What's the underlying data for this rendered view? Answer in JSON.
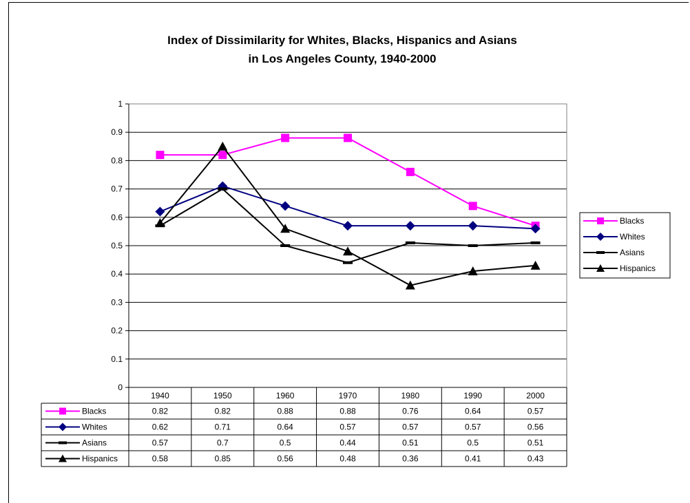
{
  "chart_data": {
    "type": "line",
    "title": "Index of Dissimilarity for Whites, Blacks, Hispanics and Asians",
    "subtitle": "in Los Angeles County, 1940-2000",
    "xlabel": "",
    "ylabel": "",
    "ylim": [
      0,
      1
    ],
    "y_ticks": [
      "0",
      "0.1",
      "0.2",
      "0.3",
      "0.4",
      "0.5",
      "0.6",
      "0.7",
      "0.8",
      "0.9",
      "1"
    ],
    "categories": [
      "1940",
      "1950",
      "1960",
      "1970",
      "1980",
      "1990",
      "2000"
    ],
    "grid": "horizontal",
    "legend_position": "right",
    "data_table": true,
    "series": [
      {
        "name": "Blacks",
        "color": "#ff00ff",
        "marker": "square",
        "values": [
          0.82,
          0.82,
          0.88,
          0.88,
          0.76,
          0.64,
          0.57
        ],
        "labels": [
          "0.82",
          "0.82",
          "0.88",
          "0.88",
          "0.76",
          "0.64",
          "0.57"
        ]
      },
      {
        "name": "Whites",
        "color": "#000080",
        "marker": "diamond",
        "values": [
          0.62,
          0.71,
          0.64,
          0.57,
          0.57,
          0.57,
          0.56
        ],
        "labels": [
          "0.62",
          "0.71",
          "0.64",
          "0.57",
          "0.57",
          "0.57",
          "0.56"
        ]
      },
      {
        "name": "Asians",
        "color": "#000000",
        "marker": "dash",
        "values": [
          0.57,
          0.7,
          0.5,
          0.44,
          0.51,
          0.5,
          0.51
        ],
        "labels": [
          "0.57",
          "0.7",
          "0.5",
          "0.44",
          "0.51",
          "0.5",
          "0.51"
        ]
      },
      {
        "name": "Hispanics",
        "color": "#000000",
        "marker": "triangle",
        "values": [
          0.58,
          0.85,
          0.56,
          0.48,
          0.36,
          0.41,
          0.43
        ],
        "labels": [
          "0.58",
          "0.85",
          "0.56",
          "0.48",
          "0.36",
          "0.41",
          "0.43"
        ]
      }
    ]
  }
}
